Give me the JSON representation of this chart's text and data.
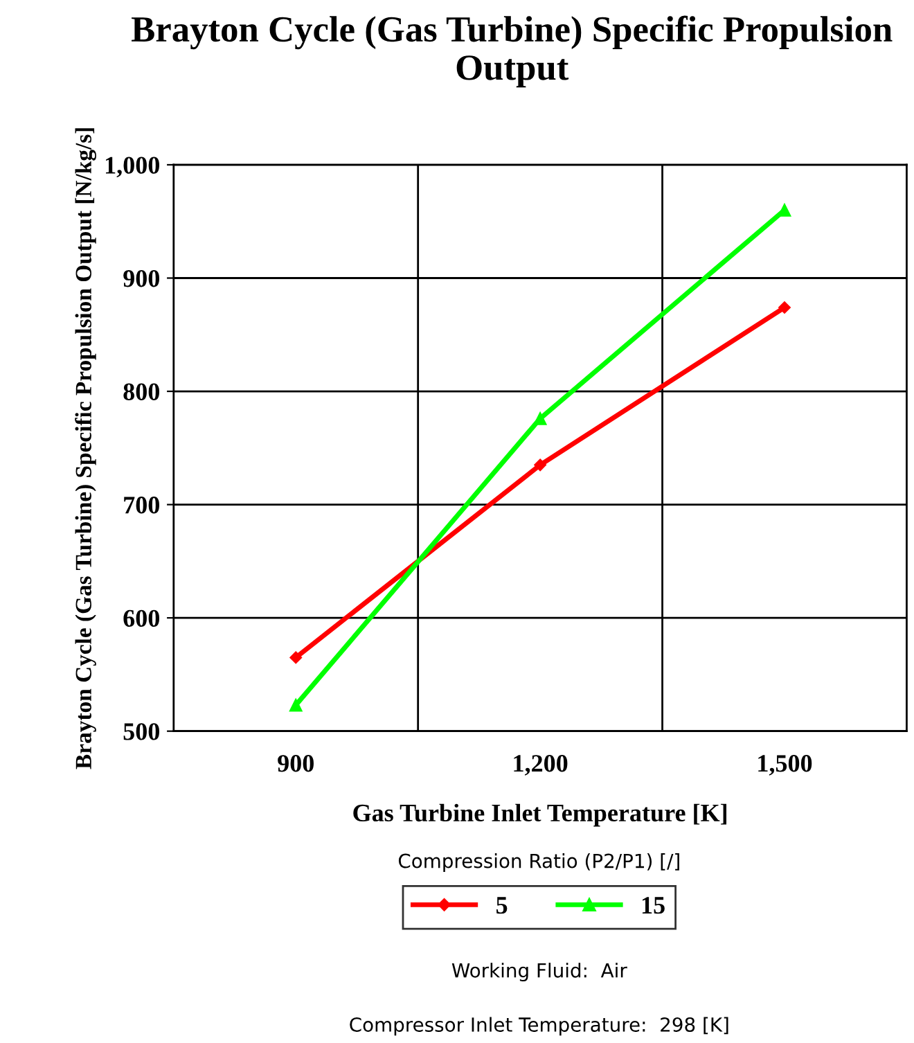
{
  "chart_data": {
    "type": "line",
    "title": "Brayton Cycle (Gas Turbine) Specific Propulsion Output",
    "xlabel": "Gas Turbine Inlet Temperature [K]",
    "ylabel": "Brayton Cycle (Gas Turbine) Specific Propulsion Output [N/kg/s]",
    "legend_title": "Compression Ratio (P2/P1) [/]",
    "categories": [
      "900",
      "1,200",
      "1,500"
    ],
    "series": [
      {
        "name": "5",
        "color": "#ff0000",
        "marker": "diamond",
        "values": [
          565,
          735,
          874
        ]
      },
      {
        "name": "15",
        "color": "#00ff00",
        "marker": "triangle",
        "values": [
          523,
          776,
          960
        ]
      }
    ],
    "ylim": [
      500,
      1000
    ],
    "yticks": [
      {
        "value": 500,
        "label": "500"
      },
      {
        "value": 600,
        "label": "600"
      },
      {
        "value": 700,
        "label": "700"
      },
      {
        "value": 800,
        "label": "800"
      },
      {
        "value": 900,
        "label": "900"
      },
      {
        "value": 1000,
        "label": "1,000"
      }
    ],
    "grid": true,
    "legend": "bottom",
    "line_style": "solid",
    "annotations": [
      "Working Fluid:  Air",
      "Compressor Inlet Temperature:  298 [K]"
    ]
  }
}
